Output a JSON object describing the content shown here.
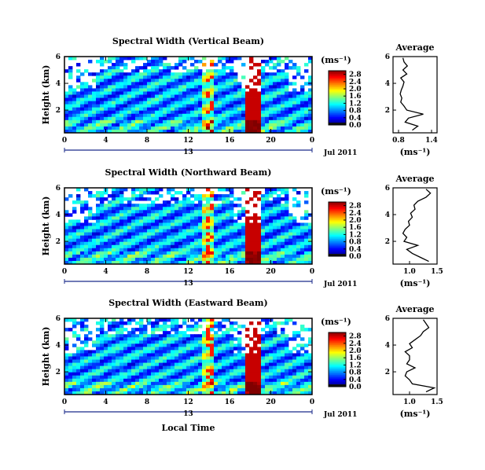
{
  "chart_data": [
    {
      "type": "heatmap",
      "title": "Spectral Width (Vertical Beam)",
      "xlabel": "",
      "ylabel": "Height (km)",
      "x_ticks": [
        "0",
        "4",
        "8",
        "12",
        "16",
        "20",
        "0"
      ],
      "xlim": [
        0,
        24
      ],
      "y_ticks": [
        "2",
        "4",
        "6"
      ],
      "ylim": [
        0.3,
        6
      ],
      "date_tick": "13",
      "date_label": "Jul 2011",
      "colorbar": {
        "unit": "(ms⁻¹)",
        "ticks": [
          "0.0",
          "0.4",
          "0.8",
          "1.2",
          "1.6",
          "2.0",
          "2.4",
          "2.8"
        ],
        "range": [
          0,
          3.0
        ]
      },
      "average": {
        "title": "Average",
        "xlabel": "(ms⁻¹)",
        "x_ticks": [
          "0.8",
          "1.4"
        ],
        "xlim": [
          0.7,
          1.5
        ],
        "y_ticks": [
          "2",
          "4",
          "6"
        ],
        "ylim": [
          0.3,
          6
        ],
        "heights": [
          0.5,
          0.8,
          1.1,
          1.4,
          1.7,
          2.0,
          2.3,
          2.6,
          2.9,
          3.2,
          3.5,
          3.8,
          4.1,
          4.4,
          4.7,
          5.0,
          5.3,
          5.6,
          5.9
        ],
        "values": [
          1.05,
          1.15,
          0.92,
          0.98,
          1.25,
          0.95,
          0.9,
          0.84,
          0.86,
          0.83,
          0.85,
          0.88,
          0.9,
          0.84,
          0.95,
          0.88,
          0.96,
          0.9,
          0.88
        ]
      }
    },
    {
      "type": "heatmap",
      "title": "Spectral Width (Northward Beam)",
      "xlabel": "",
      "ylabel": "Height (km)",
      "x_ticks": [
        "0",
        "4",
        "8",
        "12",
        "16",
        "20",
        "0"
      ],
      "xlim": [
        0,
        24
      ],
      "y_ticks": [
        "2",
        "4",
        "6"
      ],
      "ylim": [
        0.3,
        6
      ],
      "date_tick": "13",
      "date_label": "Jul 2011",
      "colorbar": {
        "unit": "(ms⁻¹)",
        "ticks": [
          "0.0",
          "0.4",
          "0.8",
          "1.2",
          "1.6",
          "2.0",
          "2.4",
          "2.8"
        ],
        "range": [
          0,
          3.0
        ]
      },
      "average": {
        "title": "Average",
        "xlabel": "(ms⁻¹)",
        "x_ticks": [
          "1.0",
          "1.5"
        ],
        "xlim": [
          0.7,
          1.5
        ],
        "y_ticks": [
          "2",
          "4",
          "6"
        ],
        "ylim": [
          0.3,
          6
        ],
        "heights": [
          0.5,
          0.8,
          1.1,
          1.4,
          1.7,
          2.0,
          2.3,
          2.6,
          2.9,
          3.2,
          3.5,
          3.8,
          4.1,
          4.4,
          4.7,
          5.0,
          5.3,
          5.6,
          5.9
        ],
        "values": [
          1.35,
          1.2,
          1.05,
          0.95,
          1.15,
          0.9,
          0.95,
          0.88,
          0.92,
          1.0,
          0.98,
          1.05,
          1.02,
          1.1,
          1.08,
          1.15,
          1.3,
          1.38,
          1.3
        ]
      }
    },
    {
      "type": "heatmap",
      "title": "Spectral Width (Eastward Beam)",
      "xlabel": "Local Time",
      "ylabel": "Height (km)",
      "x_ticks": [
        "0",
        "4",
        "8",
        "12",
        "16",
        "20",
        "0"
      ],
      "xlim": [
        0,
        24
      ],
      "y_ticks": [
        "2",
        "4",
        "6"
      ],
      "ylim": [
        0.3,
        6
      ],
      "date_tick": "13",
      "date_label": "Jul 2011",
      "colorbar": {
        "unit": "(ms⁻¹)",
        "ticks": [
          "0.0",
          "0.4",
          "0.8",
          "1.2",
          "1.6",
          "2.0",
          "2.4",
          "2.8"
        ],
        "range": [
          0,
          3.0
        ]
      },
      "average": {
        "title": "Average",
        "xlabel": "(ms⁻¹)",
        "x_ticks": [
          "1.0",
          "1.5"
        ],
        "xlim": [
          0.7,
          1.5
        ],
        "y_ticks": [
          "2",
          "4",
          "6"
        ],
        "ylim": [
          0.3,
          6
        ],
        "heights": [
          0.5,
          0.8,
          1.1,
          1.4,
          1.7,
          2.0,
          2.3,
          2.6,
          2.9,
          3.2,
          3.5,
          3.8,
          4.1,
          4.4,
          4.7,
          5.0,
          5.3,
          5.6,
          5.9
        ],
        "values": [
          1.3,
          1.45,
          1.05,
          1.0,
          0.92,
          0.95,
          1.1,
          0.95,
          1.0,
          1.0,
          0.92,
          1.05,
          1.0,
          1.1,
          1.2,
          1.25,
          1.35,
          1.3,
          1.25
        ]
      }
    }
  ]
}
